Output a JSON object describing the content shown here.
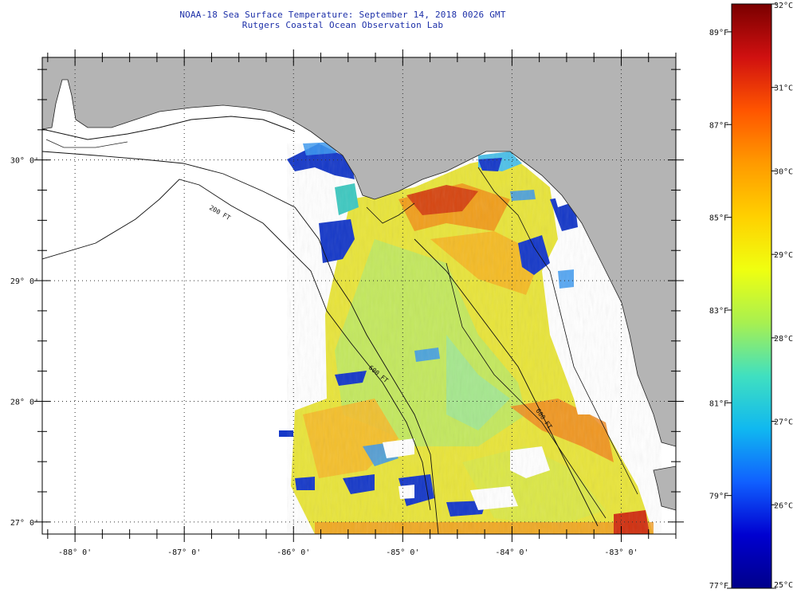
{
  "header": {
    "title_line1": "NOAA-18 Sea Surface Temperature:  September 14, 2018 0026 GMT",
    "title_line2": "Rutgers Coastal Ocean Observation Lab"
  },
  "map": {
    "lat_labels": [
      "30° 0'",
      "29° 0'",
      "28° 0'",
      "27° 0'"
    ],
    "lat_values": [
      30,
      29,
      28,
      27
    ],
    "lon_labels": [
      "-88° 0'",
      "-87° 0'",
      "-86° 0'",
      "-85° 0'",
      "-84° 0'",
      "-83° 0'"
    ],
    "lon_values": [
      -88,
      -87,
      -86,
      -85,
      -84,
      -83
    ],
    "lon_range": [
      -88.3,
      -82.5
    ],
    "lat_range": [
      26.9,
      30.85
    ],
    "isobath_labels": [
      "200 FT",
      "600 FT",
      "600 FT"
    ],
    "colors": {
      "land": "#b4b4b4",
      "cloud": "#ffffff",
      "grid": "#333333"
    }
  },
  "colorbar": {
    "celsius_labels": [
      "32°C",
      "31°C",
      "30°C",
      "29°C",
      "28°C",
      "27°C",
      "26°C",
      "25°C"
    ],
    "celsius_values": [
      32,
      31,
      30,
      29,
      28,
      27,
      26,
      25
    ],
    "fahrenheit_labels": [
      "89°F",
      "87°F",
      "85°F",
      "83°F",
      "81°F",
      "79°F",
      "77°F"
    ],
    "fahrenheit_values": [
      89,
      87,
      85,
      83,
      81,
      79,
      77
    ],
    "range_c": [
      25,
      32
    ],
    "stops": [
      "#7a0000",
      "#d01010",
      "#ff5500",
      "#ff9a00",
      "#ffd000",
      "#f0ff10",
      "#a8f050",
      "#40e0c0",
      "#10b8f0",
      "#1060ff",
      "#0000d0",
      "#00008a"
    ]
  }
}
